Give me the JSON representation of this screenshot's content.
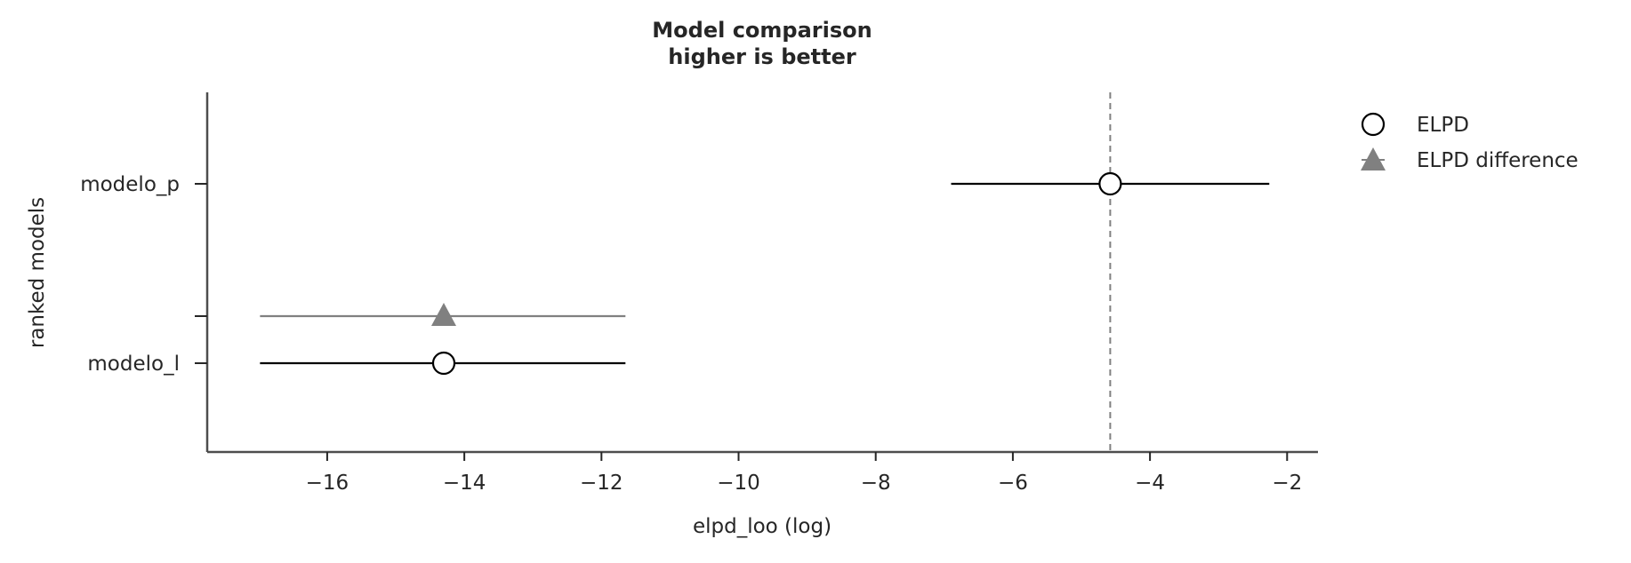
{
  "chart_data": {
    "type": "scatter",
    "title": [
      "Model comparison",
      "higher is better"
    ],
    "xlabel": "elpd_loo (log)",
    "ylabel": "ranked models",
    "xlim": [
      -17.75,
      -1.55
    ],
    "x_ticks": [
      -16,
      -14,
      -12,
      -10,
      -8,
      -6,
      -4,
      -2
    ],
    "x_tick_labels": [
      "−16",
      "−14",
      "−12",
      "−10",
      "−8",
      "−6",
      "−4",
      "−2"
    ],
    "models": [
      "modelo_p",
      "modelo_l"
    ],
    "grid": false,
    "legend_position": "right",
    "reference_line": {
      "x": -4.58,
      "style": "dashed",
      "color": "#808080"
    },
    "series": [
      {
        "name": "ELPD",
        "marker": "circle",
        "color": "#000000",
        "points": [
          {
            "model": "modelo_p",
            "elpd": -4.58,
            "lower": -6.9,
            "upper": -2.26
          },
          {
            "model": "modelo_l",
            "elpd": -14.3,
            "lower": -16.98,
            "upper": -11.65
          }
        ]
      },
      {
        "name": "ELPD difference",
        "marker": "triangle",
        "color": "#808080",
        "points": [
          {
            "model": "modelo_l",
            "elpd": -14.3,
            "lower": -16.98,
            "upper": -11.65
          }
        ]
      }
    ]
  }
}
